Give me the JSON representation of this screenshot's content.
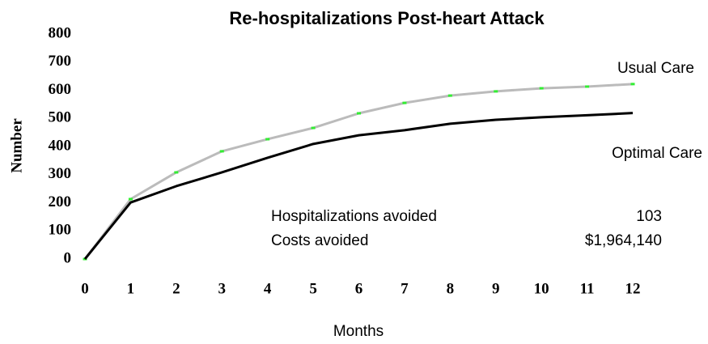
{
  "chart_data": {
    "type": "line",
    "title": "Re-hospitalizations Post-heart Attack",
    "x_label": "Months",
    "y_label": "Number",
    "x": [
      0,
      1,
      2,
      3,
      4,
      5,
      6,
      7,
      8,
      9,
      10,
      11,
      12
    ],
    "xlim": [
      0,
      12
    ],
    "xticks": [
      0,
      1,
      2,
      3,
      4,
      5,
      6,
      7,
      8,
      9,
      10,
      11,
      12
    ],
    "ylim": [
      0,
      800
    ],
    "yticks": [
      0,
      100,
      200,
      300,
      400,
      500,
      600,
      700,
      800
    ],
    "grid": false,
    "series": [
      {
        "name": "Usual Care",
        "color": "#bbbbbb",
        "marker_color": "#33ee33",
        "values": [
          0,
          213,
          308,
          383,
          426,
          466,
          518,
          555,
          581,
          596,
          607,
          613,
          622
        ]
      },
      {
        "name": "Optimal Care",
        "color": "#000000",
        "values": [
          0,
          201,
          259,
          308,
          360,
          409,
          440,
          458,
          481,
          495,
          504,
          511,
          519
        ]
      }
    ],
    "annotations": [
      {
        "text": "Hospitalizations avoided",
        "value": "103"
      },
      {
        "text": "Costs avoided",
        "value": "$1,964,140"
      }
    ]
  }
}
